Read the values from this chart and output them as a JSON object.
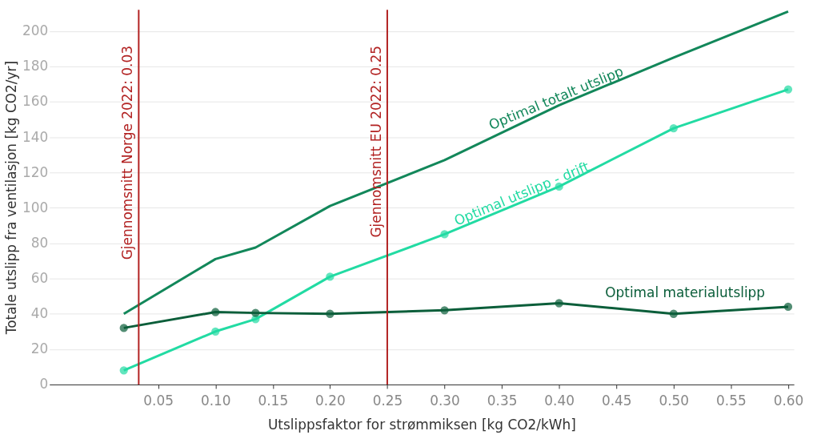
{
  "chart_data": {
    "type": "line",
    "xlabel": "Utslippsfaktor for strømmiksen [kg CO2/kWh]",
    "ylabel": "Totale utslipp fra ventilasjon [kg CO2/yr]",
    "x": [
      0.02,
      0.1,
      0.135,
      0.2,
      0.3,
      0.4,
      0.5,
      0.6
    ],
    "series": [
      {
        "name": "Optimal totalt utslipp",
        "color": "#12875a",
        "marker": "none",
        "values": [
          40,
          71,
          77.5,
          101,
          127,
          158,
          185,
          211
        ]
      },
      {
        "name": "Optimal utslipp - drift",
        "color": "#22dba3",
        "marker": "circle",
        "values": [
          8,
          30,
          37,
          61,
          85,
          112,
          145,
          167
        ]
      },
      {
        "name": "Optimal materialutslipp",
        "color": "#0b5e3a",
        "marker": "circle",
        "values": [
          32,
          41,
          40.5,
          40,
          42,
          46,
          40,
          44
        ]
      }
    ],
    "xlim": [
      -0.045,
      0.605
    ],
    "xticks": [
      {
        "value": 0.05,
        "label": "0.05"
      },
      {
        "value": 0.1,
        "label": "0.10"
      },
      {
        "value": 0.15,
        "label": "0.15"
      },
      {
        "value": 0.2,
        "label": "0.20"
      },
      {
        "value": 0.25,
        "label": "0.25"
      },
      {
        "value": 0.3,
        "label": "0.30"
      },
      {
        "value": 0.35,
        "label": "0.35"
      },
      {
        "value": 0.4,
        "label": "0.40"
      },
      {
        "value": 0.45,
        "label": "0.45"
      },
      {
        "value": 0.5,
        "label": "0.50"
      },
      {
        "value": 0.55,
        "label": "0.55"
      },
      {
        "value": 0.6,
        "label": "0.60"
      }
    ],
    "ylim": [
      0,
      212
    ],
    "yticks": [
      0,
      20,
      40,
      60,
      80,
      100,
      120,
      140,
      160,
      180,
      200
    ],
    "ref_lines": [
      {
        "axis": "x",
        "value": 0.033,
        "label": "Gjennomsnitt Norge 2022: 0.03",
        "color": "#b22222"
      },
      {
        "axis": "x",
        "value": 0.25,
        "label": "Gjennomsnitt EU 2022: 0.25",
        "color": "#b22222"
      }
    ],
    "grid": "y",
    "line_style": "solid"
  }
}
